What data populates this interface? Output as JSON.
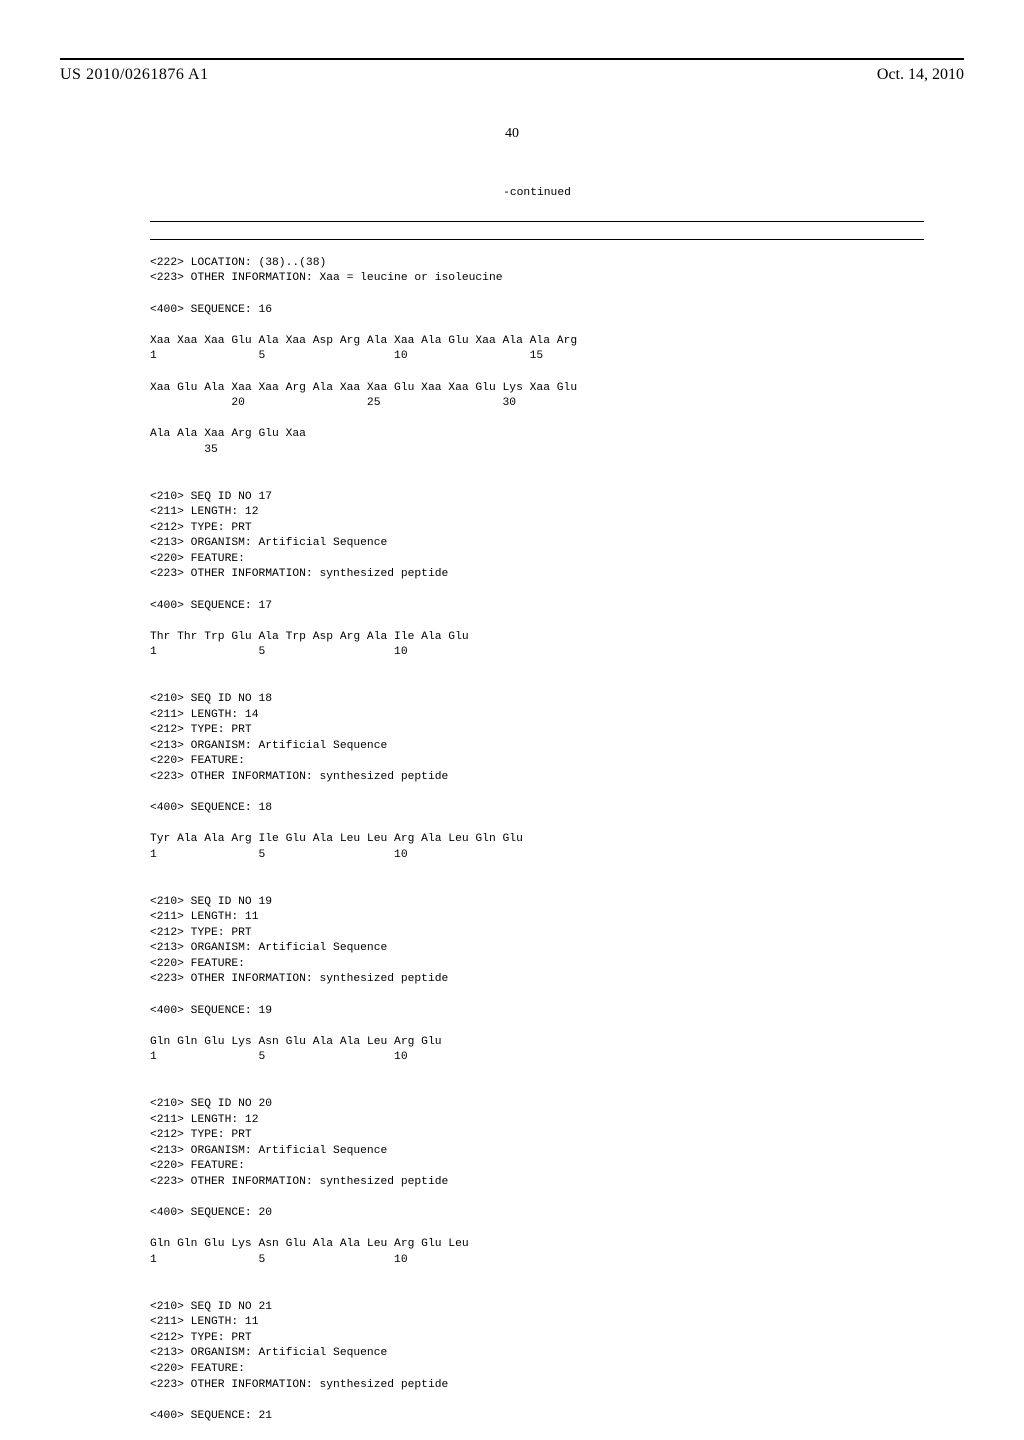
{
  "header": {
    "publication_number": "US 2010/0261876 A1",
    "publication_date": "Oct. 14, 2010",
    "page_number": "40"
  },
  "continued_label": "-continued",
  "listing": {
    "intro": "<222> LOCATION: (38)..(38)\n<223> OTHER INFORMATION: Xaa = leucine or isoleucine\n\n<400> SEQUENCE: 16\n\nXaa Xaa Xaa Glu Ala Xaa Asp Arg Ala Xaa Ala Glu Xaa Ala Ala Arg\n1               5                   10                  15\n\nXaa Glu Ala Xaa Xaa Arg Ala Xaa Xaa Glu Xaa Xaa Glu Lys Xaa Glu\n            20                  25                  30\n\nAla Ala Xaa Arg Glu Xaa\n        35\n\n",
    "seq17": "<210> SEQ ID NO 17\n<211> LENGTH: 12\n<212> TYPE: PRT\n<213> ORGANISM: Artificial Sequence\n<220> FEATURE:\n<223> OTHER INFORMATION: synthesized peptide\n\n<400> SEQUENCE: 17\n\nThr Thr Trp Glu Ala Trp Asp Arg Ala Ile Ala Glu\n1               5                   10\n\n",
    "seq18": "<210> SEQ ID NO 18\n<211> LENGTH: 14\n<212> TYPE: PRT\n<213> ORGANISM: Artificial Sequence\n<220> FEATURE:\n<223> OTHER INFORMATION: synthesized peptide\n\n<400> SEQUENCE: 18\n\nTyr Ala Ala Arg Ile Glu Ala Leu Leu Arg Ala Leu Gln Glu\n1               5                   10\n\n",
    "seq19": "<210> SEQ ID NO 19\n<211> LENGTH: 11\n<212> TYPE: PRT\n<213> ORGANISM: Artificial Sequence\n<220> FEATURE:\n<223> OTHER INFORMATION: synthesized peptide\n\n<400> SEQUENCE: 19\n\nGln Gln Glu Lys Asn Glu Ala Ala Leu Arg Glu\n1               5                   10\n\n",
    "seq20": "<210> SEQ ID NO 20\n<211> LENGTH: 12\n<212> TYPE: PRT\n<213> ORGANISM: Artificial Sequence\n<220> FEATURE:\n<223> OTHER INFORMATION: synthesized peptide\n\n<400> SEQUENCE: 20\n\nGln Gln Glu Lys Asn Glu Ala Ala Leu Arg Glu Leu\n1               5                   10\n\n",
    "seq21": "<210> SEQ ID NO 21\n<211> LENGTH: 11\n<212> TYPE: PRT\n<213> ORGANISM: Artificial Sequence\n<220> FEATURE:\n<223> OTHER INFORMATION: synthesized peptide\n\n<400> SEQUENCE: 21\n"
  }
}
